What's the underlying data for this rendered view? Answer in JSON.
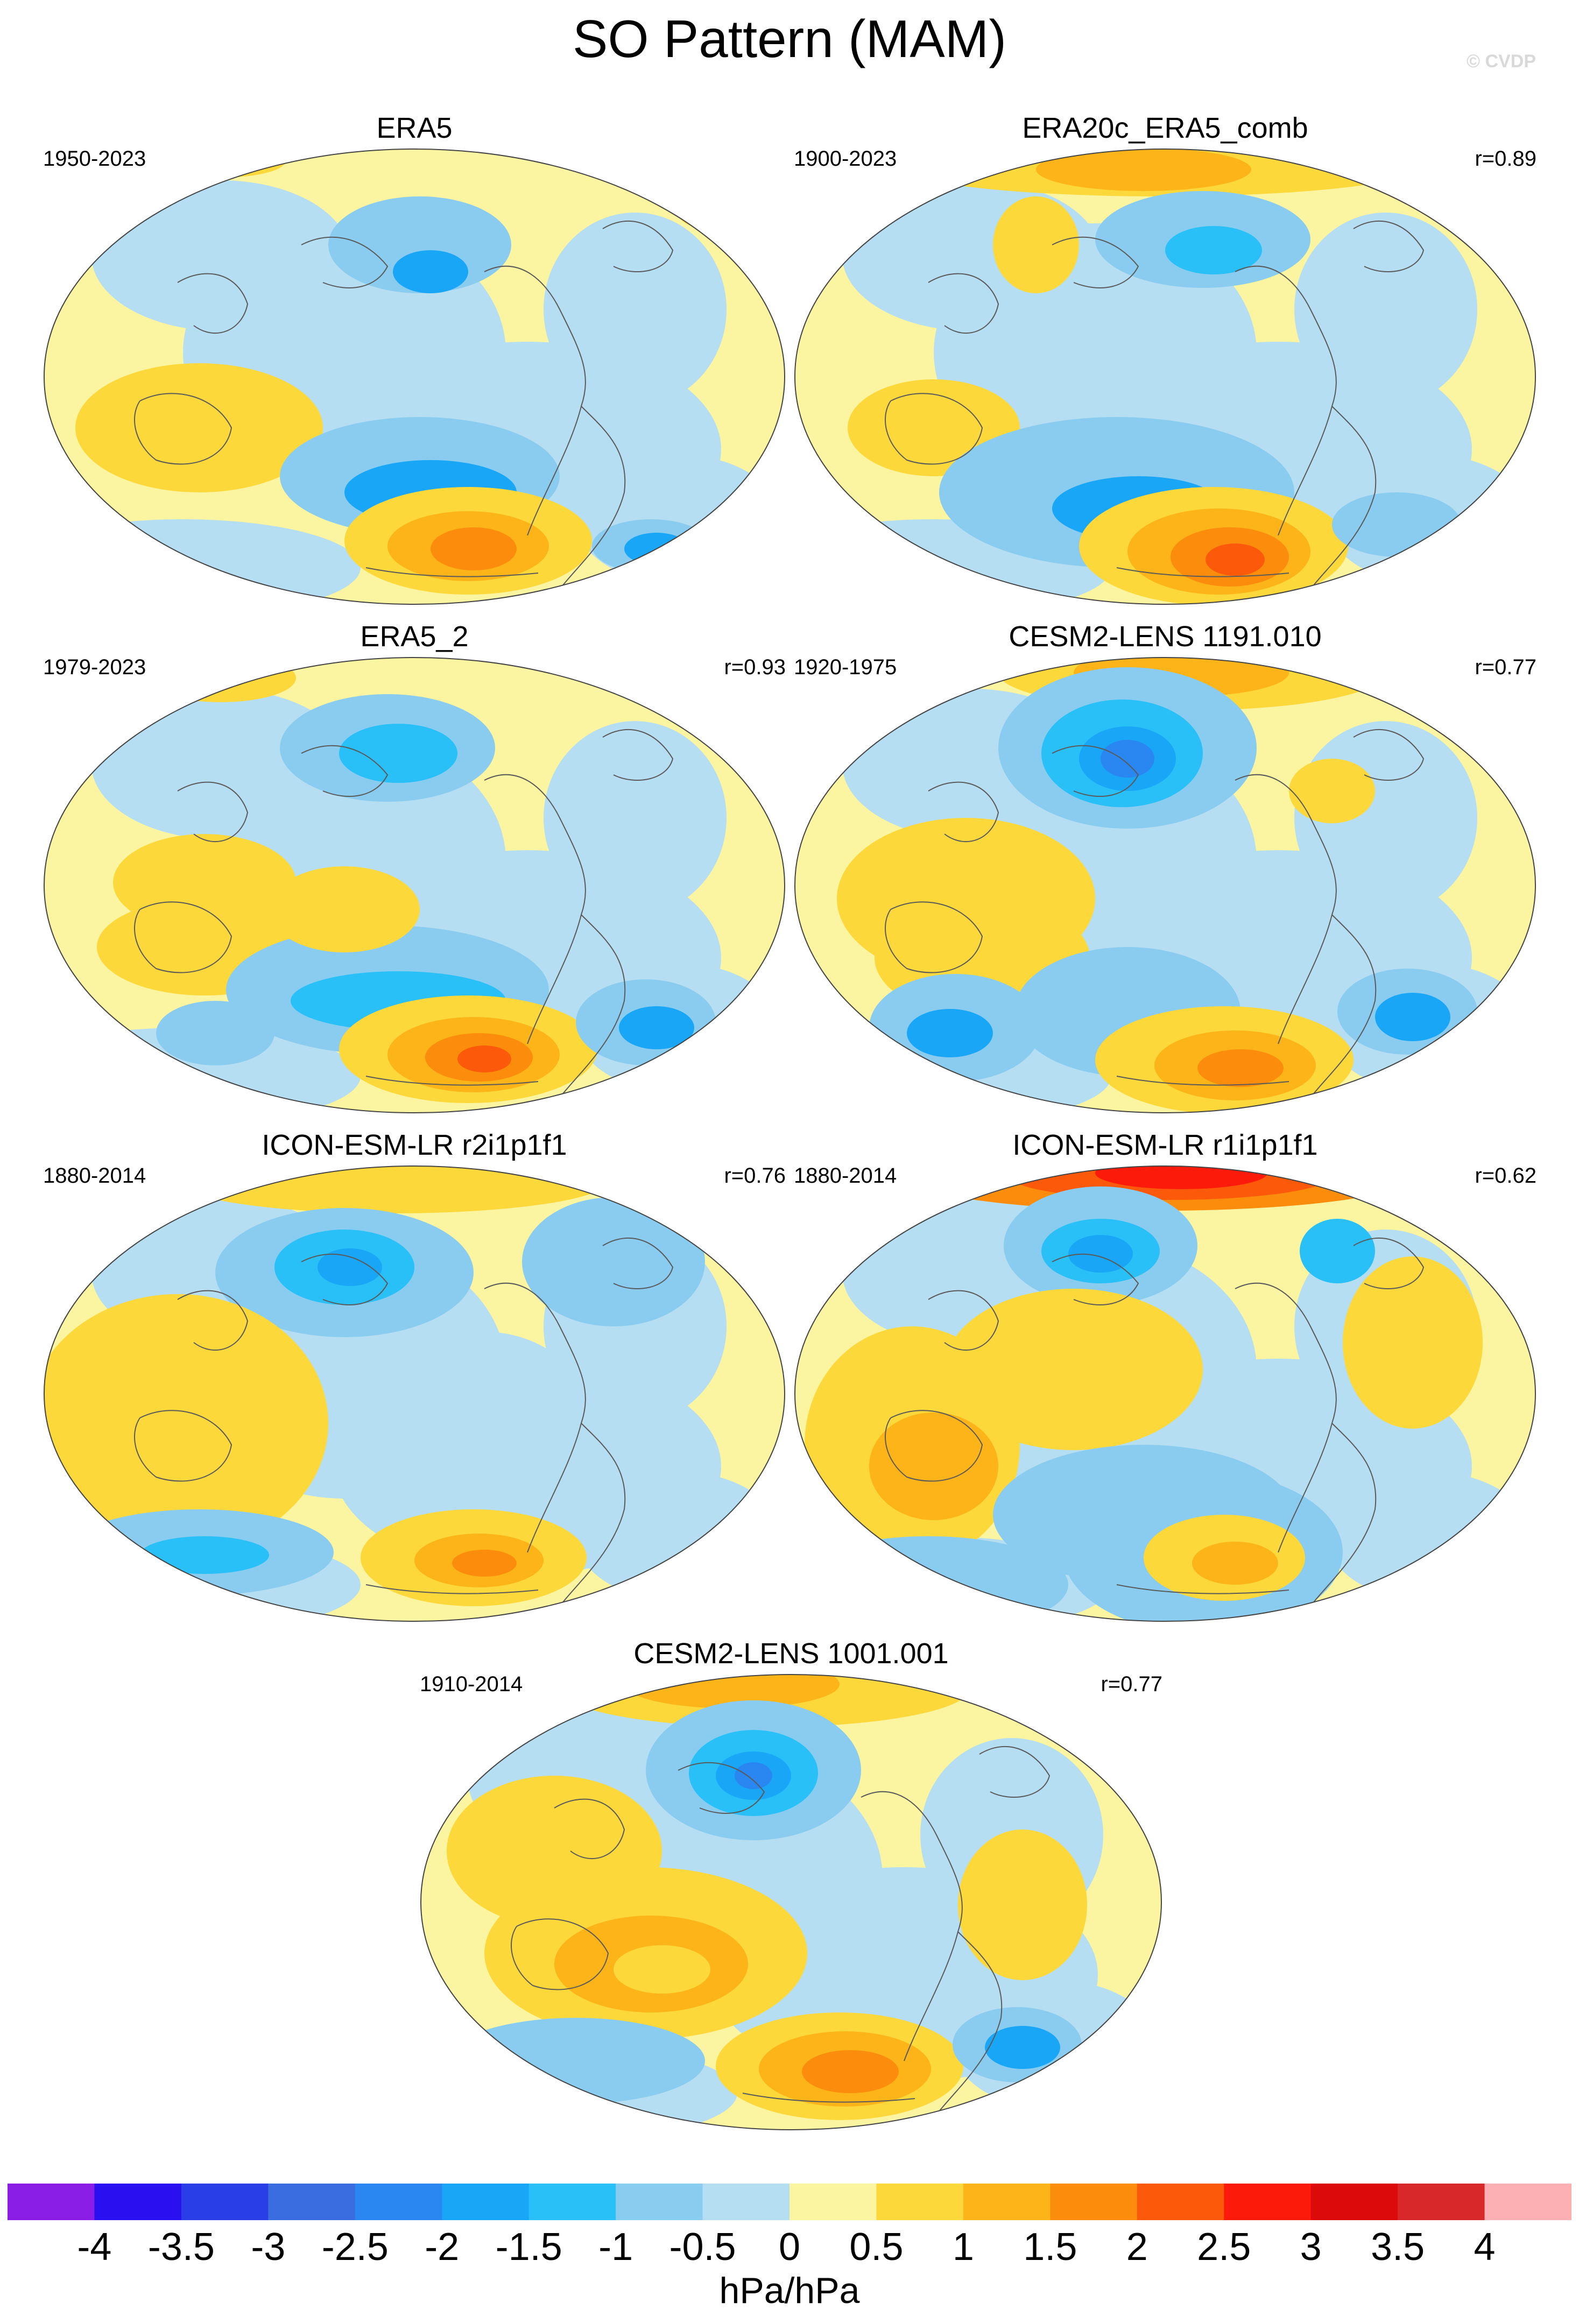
{
  "figure": {
    "title": "SO Pattern (MAM)",
    "credit": "© CVDP",
    "units": "hPa/hPa"
  },
  "panels": [
    {
      "title": "ERA5",
      "period": "1950-2023",
      "correlation": ""
    },
    {
      "title": "ERA20c_ERA5_comb",
      "period": "1900-2023",
      "correlation": "r=0.89"
    },
    {
      "title": "ERA5_2",
      "period": "1979-2023",
      "correlation": "r=0.93"
    },
    {
      "title": "CESM2-LENS 1191.010",
      "period": "1920-1975",
      "correlation": "r=0.77"
    },
    {
      "title": "ICON-ESM-LR r2i1p1f1",
      "period": "1880-2014",
      "correlation": "r=0.76"
    },
    {
      "title": "ICON-ESM-LR r1i1p1f1",
      "period": "1880-2014",
      "correlation": "r=0.62"
    },
    {
      "title": "CESM2-LENS 1001.001",
      "period": "1910-2014",
      "correlation": "r=0.77"
    }
  ],
  "colorbar": {
    "levels": [
      "-4",
      "-3.5",
      "-3",
      "-2.5",
      "-2",
      "-1.5",
      "-1",
      "-0.5",
      "0",
      "0.5",
      "1",
      "1.5",
      "2",
      "2.5",
      "3",
      "3.5",
      "4"
    ],
    "colors": [
      "#8a1ee6",
      "#2a10f0",
      "#2a3ee8",
      "#3a6ee0",
      "#2a86f0",
      "#1aa6f6",
      "#28c0f6",
      "#8accef",
      "#b6def2",
      "#fbf4a0",
      "#fcd83a",
      "#fcb418",
      "#fc8c0c",
      "#fc5a0a",
      "#fc1a0a",
      "#dc0a0a",
      "#d8282a",
      "#fcb0b4"
    ]
  }
}
